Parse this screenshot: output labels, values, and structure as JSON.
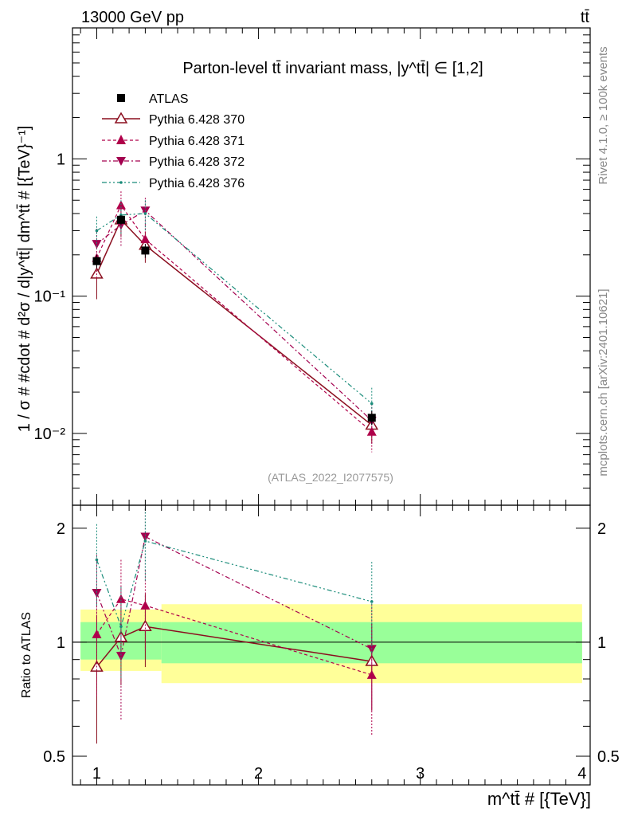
{
  "header": {
    "energy_label": "13000 GeV pp",
    "process_label": "tt̄",
    "rivet_label": "Rivet 4.1.0, ≥ 100k events",
    "source_label": "mcplots.cern.ch [arXiv:2401.10621]",
    "analysis_label": "(ATLAS_2022_I2077575)"
  },
  "colors": {
    "atlas": "#000000",
    "p370": "#8b0e1f",
    "p371": "#b0004a",
    "p372": "#a3004f",
    "p376": "#1a8c7a",
    "band_outer": "#ffff99",
    "band_inner": "#99ff99"
  },
  "chart_data": [
    {
      "type": "scatter",
      "panel": "main",
      "title": "Parton-level tt̄ invariant mass, |y^tt̄| ∈ [1,2]",
      "ylabel": "1 / σ # #cdot # d²σ / d|y^tt̄| dm^tt̄ # [{TeV}⁻¹]",
      "yscale": "log",
      "xlim": [
        0.85,
        4.05
      ],
      "ylim": [
        0.003,
        9
      ],
      "x_ticks": [
        1,
        2,
        3,
        4
      ],
      "y_tick_labels": [
        "10⁻²",
        "10⁻¹",
        "1"
      ],
      "legend_position": "top-left",
      "series": [
        {
          "name": "ATLAS",
          "marker": "square-filled",
          "x": [
            1.0,
            1.15,
            1.3,
            2.7
          ],
          "y": [
            0.18,
            0.36,
            0.215,
            0.013
          ],
          "yerr": [
            0.02,
            0.03,
            0.025,
            0.0015
          ]
        },
        {
          "name": "Pythia 6.428 370",
          "marker": "triangle-up-open",
          "line": "solid",
          "x": [
            1.0,
            1.15,
            1.3,
            2.7
          ],
          "y": [
            0.145,
            0.36,
            0.235,
            0.0115
          ],
          "yerr": [
            0.05,
            0.09,
            0.06,
            0.003
          ]
        },
        {
          "name": "Pythia 6.428 371",
          "marker": "triangle-up-filled",
          "line": "dashed",
          "x": [
            1.0,
            1.15,
            1.3,
            2.7
          ],
          "y": [
            0.19,
            0.46,
            0.26,
            0.0103
          ],
          "yerr": [
            0.06,
            0.12,
            0.07,
            0.003
          ]
        },
        {
          "name": "Pythia 6.428 372",
          "marker": "triangle-down-filled",
          "line": "dashdot",
          "x": [
            1.0,
            1.15,
            1.3,
            2.7
          ],
          "y": [
            0.24,
            0.33,
            0.42,
            0.0124
          ],
          "yerr": [
            0.07,
            0.1,
            0.1,
            0.004
          ]
        },
        {
          "name": "Pythia 6.428 376",
          "marker": "dot",
          "line": "dashdotdot",
          "x": [
            1.0,
            1.15,
            1.3,
            2.7
          ],
          "y": [
            0.3,
            0.39,
            0.4,
            0.0165
          ],
          "yerr": [
            0.08,
            0.11,
            0.1,
            0.005
          ]
        }
      ]
    },
    {
      "type": "scatter",
      "panel": "ratio",
      "ylabel": "Ratio to ATLAS",
      "xlabel": "m^tt̄ # [{TeV}]",
      "xlim": [
        0.85,
        4.05
      ],
      "ylim": [
        0.42,
        2.3
      ],
      "x_tick_labels": [
        "1",
        "2",
        "3",
        "4"
      ],
      "y_ticks": [
        0.5,
        1,
        2
      ],
      "y_tick_labels": [
        "0.5",
        "1",
        "2"
      ],
      "reference_line": 1,
      "bands": [
        {
          "x0": 0.9,
          "x1": 1.4,
          "outer": [
            0.84,
            1.22
          ],
          "inner": [
            0.9,
            1.13
          ]
        },
        {
          "x0": 1.4,
          "x1": 4.0,
          "outer": [
            0.78,
            1.26
          ],
          "inner": [
            0.88,
            1.13
          ]
        }
      ],
      "series": [
        {
          "name": "Pythia 6.428 370",
          "x": [
            1.0,
            1.15,
            1.3,
            2.7
          ],
          "y": [
            0.86,
            1.03,
            1.1,
            0.89
          ],
          "yerr": [
            0.32,
            0.26,
            0.24,
            0.23
          ]
        },
        {
          "name": "Pythia 6.428 371",
          "x": [
            1.0,
            1.15,
            1.3,
            2.7
          ],
          "y": [
            1.05,
            1.3,
            1.25,
            0.82
          ],
          "yerr": [
            0.33,
            0.35,
            0.3,
            0.25
          ]
        },
        {
          "name": "Pythia 6.428 372",
          "x": [
            1.0,
            1.15,
            1.3,
            2.7
          ],
          "y": [
            1.35,
            0.92,
            1.9,
            0.96
          ],
          "yerr": [
            0.35,
            0.3,
            0.35,
            0.3
          ]
        },
        {
          "name": "Pythia 6.428 376",
          "x": [
            1.0,
            1.15,
            1.3,
            2.7
          ],
          "y": [
            1.65,
            1.1,
            1.85,
            1.28
          ],
          "yerr": [
            0.4,
            0.3,
            0.4,
            0.35
          ]
        }
      ]
    }
  ]
}
